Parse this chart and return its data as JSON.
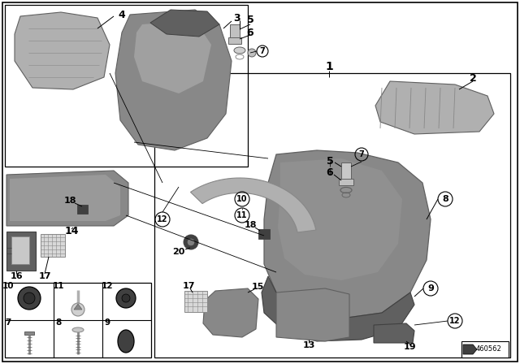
{
  "bg_color": "#ffffff",
  "diagram_number": "460562",
  "part_gray_light": "#b0b0b0",
  "part_gray_mid": "#888888",
  "part_gray_dark": "#606060",
  "part_gray_darker": "#404040",
  "line_color": "#000000",
  "border_color": "#000000"
}
